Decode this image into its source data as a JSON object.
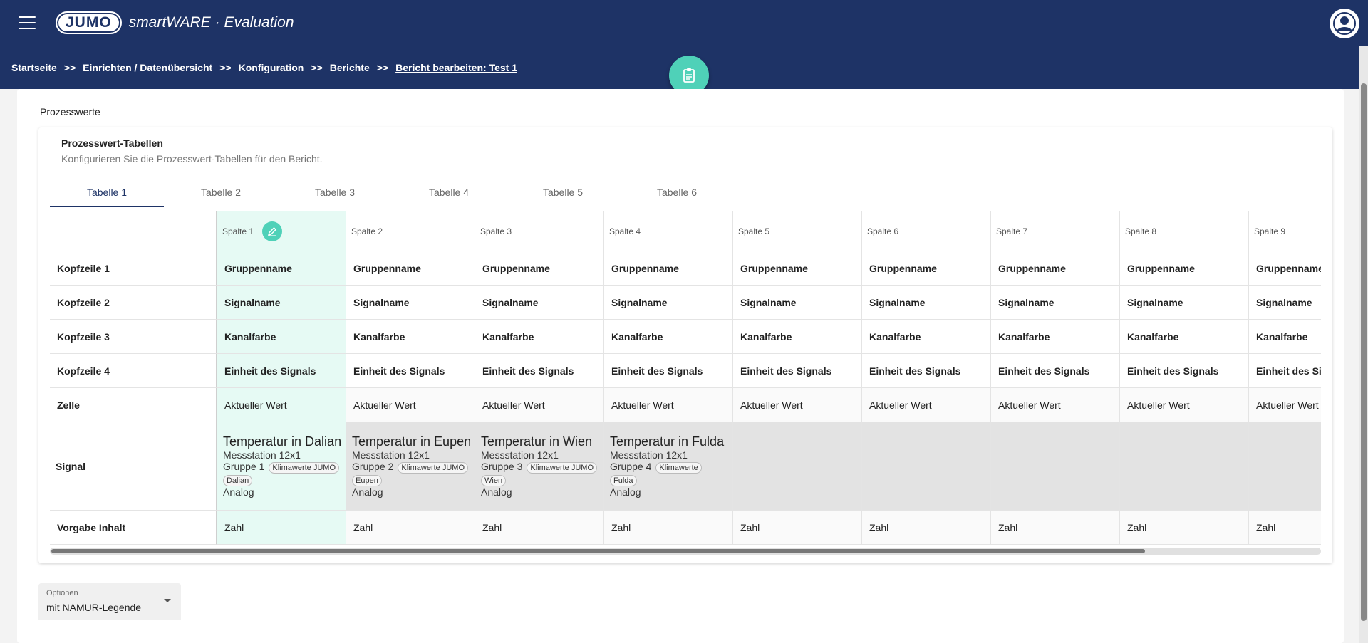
{
  "app": {
    "brand": "JUMO",
    "title": "smartWARE · Evaluation"
  },
  "breadcrumb": [
    {
      "label": "Startseite"
    },
    {
      "label": "Einrichten / Datenübersicht"
    },
    {
      "label": "Konfiguration"
    },
    {
      "label": "Berichte"
    },
    {
      "label": "Bericht bearbeiten: Test 1"
    }
  ],
  "breadcrumb_sep": ">>",
  "section": {
    "title": "Prozesswerte"
  },
  "card": {
    "title": "Prozesswert-Tabellen",
    "subtitle": "Konfigurieren Sie die Prozesswert-Tabellen für den Bericht."
  },
  "tabs": [
    "Tabelle 1",
    "Tabelle 2",
    "Tabelle 3",
    "Tabelle 4",
    "Tabelle 5",
    "Tabelle 6"
  ],
  "active_tab": 0,
  "columns": [
    "Spalte 1",
    "Spalte 2",
    "Spalte 3",
    "Spalte 4",
    "Spalte 5",
    "Spalte 6",
    "Spalte 7",
    "Spalte 8",
    "Spalte 9"
  ],
  "rows": {
    "kopf1": {
      "label": "Kopfzeile 1",
      "value": "Gruppenname"
    },
    "kopf2": {
      "label": "Kopfzeile 2",
      "value": "Signalname"
    },
    "kopf3": {
      "label": "Kopfzeile 3",
      "value": "Kanalfarbe"
    },
    "kopf4": {
      "label": "Kopfzeile 4",
      "value": "Einheit des Signals"
    },
    "zelle": {
      "label": "Zelle",
      "value": "Aktueller Wert"
    },
    "signal": {
      "label": "Signal"
    },
    "vorgabe": {
      "label": "Vorgabe Inhalt",
      "value": "Zahl"
    }
  },
  "signals": [
    {
      "title": "Temperatur in Dalian",
      "station": "Messstation 12x1",
      "group": "Gruppe 1",
      "chip_a": "Klimawerte JUMO",
      "chip_b": "Dalian",
      "type": "Analog"
    },
    {
      "title": "Temperatur in Eupen",
      "station": "Messstation 12x1",
      "group": "Gruppe 2",
      "chip_a": "Klimawerte JUMO",
      "chip_b": "Eupen",
      "type": "Analog"
    },
    {
      "title": "Temperatur in Wien",
      "station": "Messstation 12x1",
      "group": "Gruppe 3",
      "chip_a": "Klimawerte JUMO",
      "chip_b": "Wien",
      "type": "Analog"
    },
    {
      "title": "Temperatur in Fulda",
      "station": "Messstation 12x1",
      "group": "Gruppe 4",
      "chip_a": "Klimawerte",
      "chip_b": "Fulda",
      "type": "Analog"
    }
  ],
  "options": {
    "label": "Optionen",
    "value": "mit NAMUR-Legende"
  },
  "colors": {
    "navy": "#1e3366",
    "teal": "#4fd1b8",
    "selected_column": "#e6faf4",
    "signal_grey": "#e3e3e3"
  }
}
